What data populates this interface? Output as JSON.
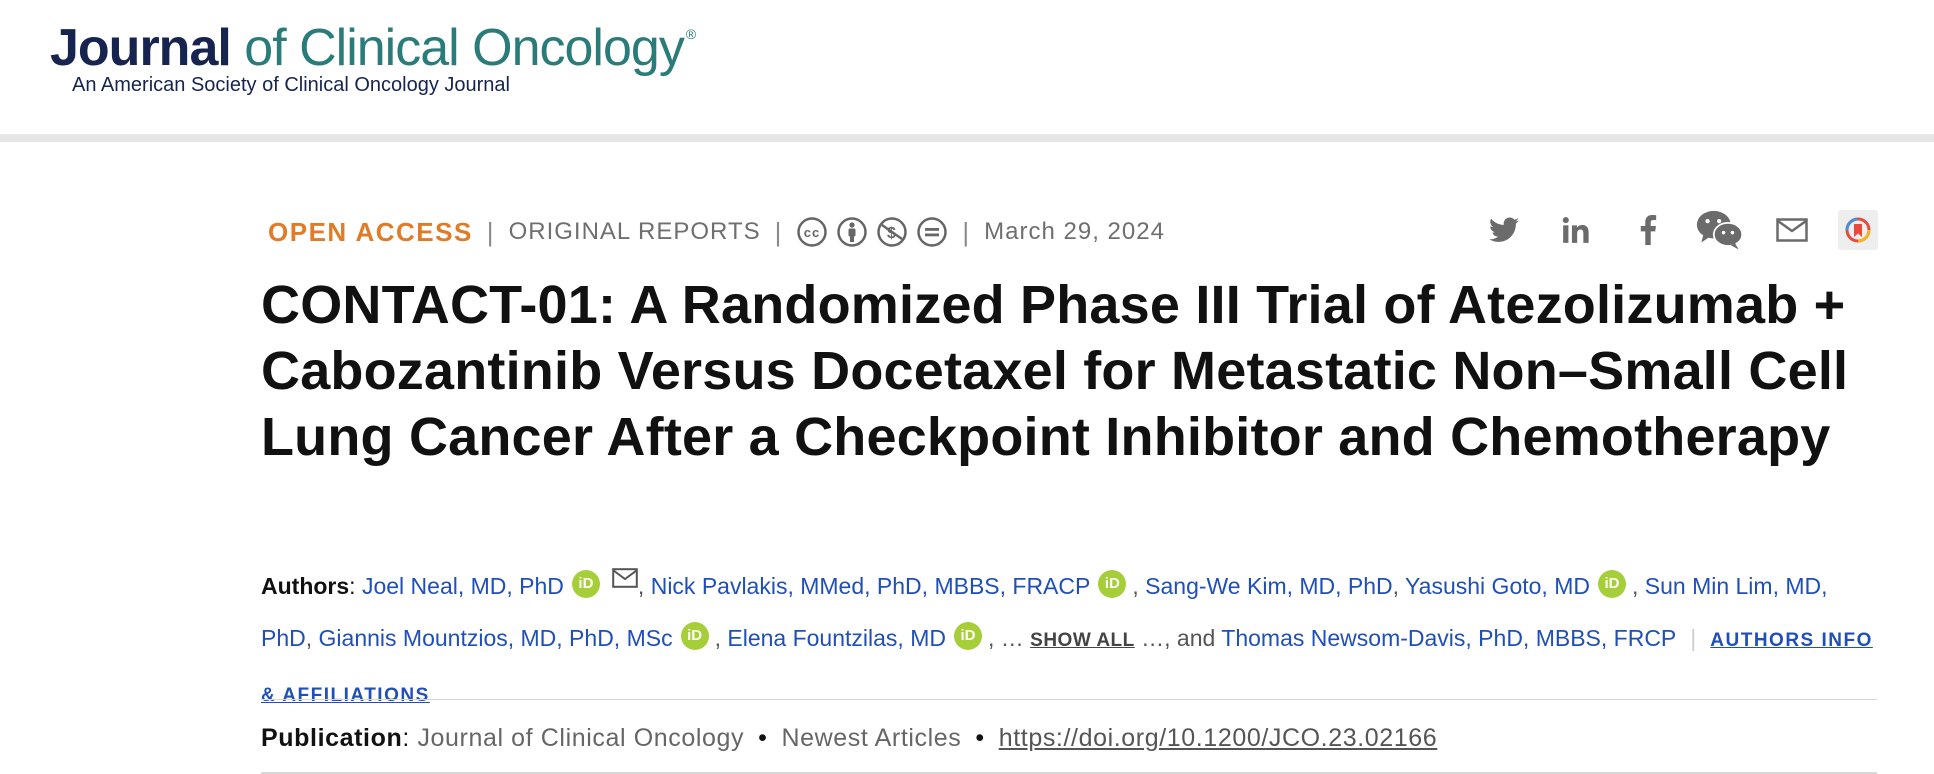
{
  "header": {
    "logo_journal": "Journal",
    "logo_rest": " of Clinical Oncology",
    "logo_registered": "®",
    "logo_subtitle": "An American Society of Clinical Oncology Journal"
  },
  "meta": {
    "access": "OPEN ACCESS",
    "separator": "|",
    "article_type": "ORIGINAL REPORTS",
    "license_icons": [
      "cc-icon",
      "by-attribution-icon",
      "non-commercial-icon",
      "no-derivatives-icon"
    ],
    "date": "March 29, 2024"
  },
  "share_icons": [
    "twitter-icon",
    "linkedin-icon",
    "facebook-icon",
    "wechat-icon",
    "email-icon",
    "bookmark-icon"
  ],
  "title": "CONTACT-01: A Randomized Phase III Trial of Atezolizumab + Cabozantinib Versus Docetaxel for Metastatic Non–Small Cell Lung Cancer After a Checkpoint Inhibitor and Chemotherapy",
  "authors": {
    "label": "Authors",
    "colon": ":",
    "list": [
      "Joel Neal, MD, PhD",
      "Nick Pavlakis, MMed, PhD, MBBS, FRACP",
      "Sang-We Kim, MD, PhD",
      "Yasushi Goto, MD",
      "Sun Min Lim, MD, PhD",
      "Giannis Mountzios, MD, PhD, MSc",
      "Elena Fountzilas, MD"
    ],
    "ellipsis_before": "…",
    "show_all": "SHOW ALL",
    "ellipsis_after": "…, and",
    "last_author": "Thomas Newsom-Davis, PhD, MBBS, FRCP",
    "orcid_label": "iD",
    "affiliations_link": "AUTHORS INFO & AFFILIATIONS"
  },
  "publication": {
    "label": "Publication",
    "journal": "Journal of Clinical Oncology",
    "section": "Newest Articles",
    "doi": "https://doi.org/10.1200/JCO.23.02166"
  },
  "colors": {
    "open_access": "#e07b27",
    "link": "#1f4fb8",
    "orcid": "#a6ce39",
    "logo_navy": "#16244f",
    "logo_teal": "#2a7c7a"
  }
}
